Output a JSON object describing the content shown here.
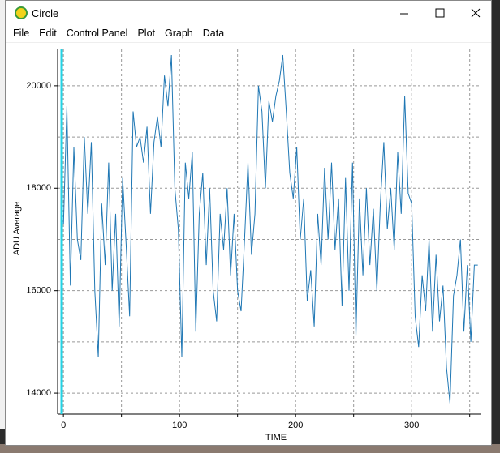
{
  "window": {
    "title": "Circle"
  },
  "menu": [
    "File",
    "Edit",
    "Control Panel",
    "Plot",
    "Graph",
    "Data"
  ],
  "chart_data": {
    "type": "line",
    "xlabel": "TIME",
    "ylabel": "ADU Average",
    "x": [
      0,
      3,
      6,
      9,
      12,
      15,
      18,
      21,
      24,
      27,
      30,
      33,
      36,
      39,
      42,
      45,
      48,
      51,
      54,
      57,
      60,
      63,
      66,
      69,
      72,
      75,
      78,
      81,
      84,
      87,
      90,
      93,
      96,
      99,
      102,
      105,
      108,
      111,
      114,
      117,
      120,
      123,
      126,
      129,
      132,
      135,
      138,
      141,
      144,
      147,
      150,
      153,
      156,
      159,
      162,
      165,
      168,
      171,
      174,
      177,
      180,
      183,
      186,
      189,
      192,
      195,
      198,
      201,
      204,
      207,
      210,
      213,
      216,
      219,
      222,
      225,
      228,
      231,
      234,
      237,
      240,
      243,
      246,
      249,
      252,
      255,
      258,
      261,
      264,
      267,
      270,
      273,
      276,
      279,
      282,
      285,
      288,
      291,
      294,
      297,
      300,
      303,
      306,
      309,
      312,
      315,
      318,
      321,
      324,
      327,
      330,
      333,
      336,
      339,
      342,
      345,
      348,
      351,
      354,
      357
    ],
    "series": [
      {
        "color": "#1f77b4",
        "values": [
          17300,
          19600,
          16100,
          18800,
          17000,
          16600,
          19000,
          17500,
          18900,
          16000,
          14700,
          17700,
          16500,
          18500,
          16000,
          17500,
          15300,
          18200,
          16900,
          15500,
          19500,
          18800,
          19000,
          18500,
          19200,
          17500,
          18900,
          19400,
          18800,
          20200,
          19600,
          20600,
          18000,
          17200,
          14700,
          18500,
          17800,
          18700,
          15200,
          17500,
          18300,
          16500,
          18000,
          16000,
          15400,
          17500,
          16800,
          18000,
          16300,
          17500,
          16000,
          15600,
          17000,
          18500,
          16700,
          17500,
          20000,
          19500,
          18000,
          19700,
          19300,
          19800,
          20100,
          20600,
          19500,
          18300,
          17800,
          18800,
          17000,
          17800,
          15800,
          16400,
          15300,
          17500,
          16500,
          18400,
          17000,
          18500,
          16800,
          17800,
          15700,
          18200,
          16000,
          18500,
          15100,
          17800,
          16300,
          18000,
          16500,
          17600,
          16000,
          17700,
          18900,
          17200,
          18000,
          16800,
          18700,
          17500,
          19800,
          17900,
          17700,
          15500,
          14900,
          16300,
          15600,
          17000,
          15200,
          16700,
          15400,
          16100,
          14500,
          13800,
          15900,
          16300,
          17000,
          15200,
          16500,
          15000,
          16500,
          16500
        ]
      }
    ],
    "xlim": [
      -5,
      360
    ],
    "xticks": [
      0,
      100,
      200,
      300
    ],
    "minor_xticks": [
      50,
      150,
      250,
      350
    ],
    "ylim": [
      13590,
      20710
    ],
    "yticks": [
      14000,
      16000,
      18000,
      20000
    ],
    "minor_yticks": [
      15000,
      17000,
      19000
    ],
    "grid": true
  }
}
